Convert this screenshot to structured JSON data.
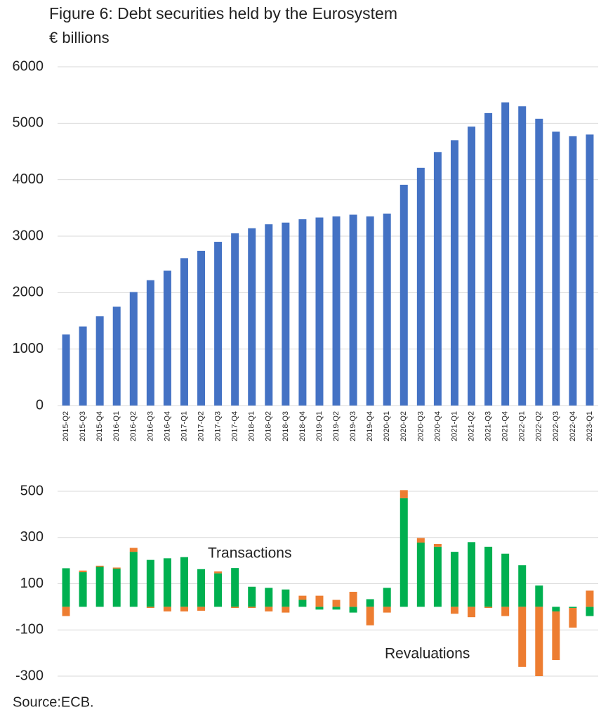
{
  "source": "Source:ECB.",
  "chart_data": [
    {
      "type": "bar",
      "title": "Figure 6: Debt securities held by the Eurosystem",
      "subtitle": "€ billions",
      "categories": [
        "2015-Q2",
        "2015-Q3",
        "2015-Q4",
        "2016-Q1",
        "2016-Q2",
        "2016-Q3",
        "2016-Q4",
        "2017-Q1",
        "2017-Q2",
        "2017-Q3",
        "2017-Q4",
        "2018-Q1",
        "2018-Q2",
        "2018-Q3",
        "2018-Q4",
        "2019-Q1",
        "2019-Q2",
        "2019-Q3",
        "2019-Q4",
        "2020-Q1",
        "2020-Q2",
        "2020-Q3",
        "2020-Q4",
        "2021-Q1",
        "2021-Q2",
        "2021-Q3",
        "2021-Q4",
        "2022-Q1",
        "2022-Q2",
        "2022-Q3",
        "2022-Q4",
        "2023-Q1"
      ],
      "values": [
        1260,
        1400,
        1580,
        1750,
        2010,
        2220,
        2390,
        2610,
        2740,
        2900,
        3050,
        3140,
        3210,
        3240,
        3300,
        3330,
        3350,
        3380,
        3350,
        3400,
        3910,
        4210,
        4490,
        4700,
        4940,
        5180,
        5370,
        5300,
        5080,
        4850,
        4770,
        4800
      ],
      "color": "#4472c4",
      "ylim": [
        0,
        6000
      ],
      "yticks": [
        0,
        1000,
        2000,
        3000,
        4000,
        5000,
        6000
      ],
      "grid": true
    },
    {
      "type": "stacked_bar",
      "series": [
        {
          "name": "Transactions",
          "color": "#00b050",
          "values": [
            167,
            150,
            173,
            165,
            238,
            203,
            210,
            215,
            163,
            145,
            168,
            87,
            82,
            75,
            30,
            -12,
            -12,
            -25,
            33,
            82,
            470,
            278,
            260,
            238,
            280,
            260,
            230,
            180,
            92,
            -20,
            -5,
            -40
          ]
        },
        {
          "name": "Revaluations",
          "color": "#ed7d31",
          "values": [
            -40,
            7,
            5,
            5,
            17,
            -5,
            -20,
            -20,
            -17,
            8,
            -5,
            -5,
            -20,
            -25,
            18,
            48,
            30,
            65,
            -80,
            -25,
            35,
            20,
            12,
            -30,
            -45,
            -5,
            -40,
            -260,
            -300,
            -210,
            -85,
            70
          ]
        }
      ],
      "ylim": [
        -300,
        500
      ],
      "yticks": [
        -300,
        -100,
        100,
        300,
        500
      ],
      "grid": true
    }
  ]
}
